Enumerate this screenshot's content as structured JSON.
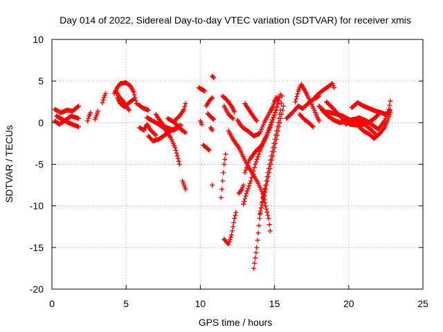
{
  "chart_data": {
    "type": "scatter",
    "marker": "plus",
    "color": "#ff0000",
    "title": "Day 014 of 2022, Sidereal Day-to-day VTEC variation (SDTVAR) for receiver xmis",
    "xlabel": "GPS time / hours",
    "ylabel": "SDTVAR / TECUs",
    "xlim": [
      0,
      25
    ],
    "ylim": [
      -20,
      10
    ],
    "xticks": [
      0,
      5,
      10,
      15,
      20,
      25
    ],
    "yticks": [
      -20,
      -15,
      -10,
      -5,
      0,
      5,
      10
    ],
    "grid": true,
    "tracks": [
      [
        [
          0.2,
          1.6
        ],
        [
          0.6,
          1.2
        ],
        [
          1.0,
          1.5
        ],
        [
          1.4,
          1.4
        ],
        [
          1.8,
          2.0
        ]
      ],
      [
        [
          0.2,
          0.2
        ],
        [
          0.5,
          -0.2
        ],
        [
          0.9,
          0.3
        ],
        [
          1.3,
          0.8
        ],
        [
          1.8,
          0.5
        ]
      ],
      [
        [
          0.3,
          0.8
        ],
        [
          0.7,
          0.4
        ],
        [
          1.1,
          0.0
        ],
        [
          1.5,
          -0.3
        ],
        [
          1.8,
          -0.5
        ]
      ],
      [
        [
          2.4,
          0.2
        ],
        [
          2.5,
          0.8
        ],
        [
          2.6,
          1.2
        ]
      ],
      [
        [
          2.9,
          0.4
        ],
        [
          3.0,
          0.9
        ],
        [
          3.1,
          1.4
        ]
      ],
      [
        [
          3.4,
          2.4
        ],
        [
          3.5,
          3.0
        ],
        [
          3.6,
          3.5
        ]
      ],
      [
        [
          4.2,
          3.5
        ],
        [
          4.4,
          4.2
        ],
        [
          4.6,
          4.7
        ],
        [
          5.0,
          4.8
        ],
        [
          5.3,
          4.4
        ],
        [
          5.5,
          3.7
        ],
        [
          5.6,
          3.0
        ],
        [
          5.7,
          2.3
        ]
      ],
      [
        [
          4.4,
          3.0
        ],
        [
          4.6,
          2.3
        ],
        [
          4.9,
          1.9
        ],
        [
          5.2,
          2.4
        ],
        [
          5.5,
          2.8
        ]
      ],
      [
        [
          4.3,
          3.8
        ],
        [
          4.5,
          3.2
        ],
        [
          4.8,
          2.6
        ],
        [
          5.0,
          2.0
        ],
        [
          5.2,
          1.5
        ]
      ],
      [
        [
          5.8,
          2.2
        ],
        [
          6.1,
          1.8
        ],
        [
          6.5,
          1.5
        ]
      ],
      [
        [
          5.9,
          -0.6
        ],
        [
          6.2,
          -0.9
        ],
        [
          6.4,
          -0.2
        ],
        [
          6.7,
          -1.0
        ],
        [
          7.0,
          -1.5
        ]
      ],
      [
        [
          6.4,
          0.6
        ],
        [
          6.8,
          0.2
        ],
        [
          7.2,
          -0.2
        ],
        [
          7.6,
          -0.7
        ],
        [
          8.0,
          -1.8
        ],
        [
          8.3,
          -3.0
        ],
        [
          8.5,
          -4.3
        ],
        [
          8.6,
          -5.0
        ]
      ],
      [
        [
          6.5,
          -1.6
        ],
        [
          6.8,
          -2.2
        ],
        [
          7.2,
          -2.0
        ],
        [
          7.6,
          -1.5
        ],
        [
          8.0,
          -1.0
        ],
        [
          8.4,
          -0.6
        ],
        [
          8.7,
          -0.3
        ]
      ],
      [
        [
          7.0,
          1.0
        ],
        [
          7.3,
          0.2
        ],
        [
          7.6,
          -0.5
        ],
        [
          7.9,
          -0.7
        ],
        [
          8.2,
          -0.9
        ],
        [
          8.5,
          -0.6
        ]
      ],
      [
        [
          7.8,
          0.5
        ],
        [
          8.1,
          0.2
        ],
        [
          8.4,
          -0.2
        ],
        [
          8.7,
          -0.8
        ],
        [
          9.0,
          -1.2
        ]
      ],
      [
        [
          8.3,
          0.3
        ],
        [
          8.6,
          0.8
        ],
        [
          8.9,
          1.6
        ],
        [
          9.0,
          2.3
        ]
      ],
      [
        [
          8.8,
          -7.0
        ],
        [
          8.9,
          -7.5
        ],
        [
          9.0,
          -8.0
        ]
      ],
      [
        [
          9.9,
          4.2
        ],
        [
          10.1,
          4.0
        ],
        [
          10.3,
          3.8
        ]
      ],
      [
        [
          10.0,
          0.2
        ],
        [
          10.1,
          -0.2
        ]
      ],
      [
        [
          10.4,
          2.0
        ],
        [
          10.6,
          2.6
        ],
        [
          10.8,
          3.0
        ]
      ],
      [
        [
          10.5,
          1.1
        ],
        [
          10.7,
          0.7
        ],
        [
          10.9,
          0.4
        ]
      ],
      [
        [
          10.2,
          -2.7
        ],
        [
          10.4,
          -3.0
        ],
        [
          10.6,
          -3.3
        ]
      ],
      [
        [
          10.8,
          5.6
        ],
        [
          10.9,
          5.4
        ]
      ],
      [
        [
          10.7,
          -0.6
        ],
        [
          10.8,
          -0.9
        ]
      ],
      [
        [
          10.8,
          -7.5
        ]
      ],
      [
        [
          11.4,
          -9.0
        ],
        [
          11.5,
          -7.0
        ],
        [
          11.6,
          -5.0
        ],
        [
          11.7,
          -3.8
        ]
      ],
      [
        [
          11.5,
          3.2
        ],
        [
          11.8,
          2.7
        ],
        [
          12.1,
          2.0
        ],
        [
          12.3,
          1.3
        ]
      ],
      [
        [
          11.6,
          2.0
        ],
        [
          11.9,
          1.0
        ],
        [
          12.2,
          0.5
        ]
      ],
      [
        [
          11.9,
          -1.0
        ],
        [
          12.2,
          -2.0
        ],
        [
          12.6,
          -3.0
        ],
        [
          13.0,
          -4.5
        ],
        [
          13.3,
          -5.5
        ],
        [
          13.6,
          -6.3
        ],
        [
          13.9,
          -7.3
        ],
        [
          14.2,
          -8.5
        ],
        [
          14.4,
          -10.0
        ],
        [
          14.6,
          -11.5
        ],
        [
          14.7,
          -13.0
        ]
      ],
      [
        [
          11.6,
          -14.0
        ],
        [
          11.9,
          -14.6
        ],
        [
          12.1,
          -13.5
        ],
        [
          12.3,
          -11.5
        ],
        [
          12.4,
          -10.8
        ]
      ],
      [
        [
          12.6,
          -8.5
        ],
        [
          12.8,
          -8.0
        ],
        [
          12.9,
          -7.5
        ]
      ],
      [
        [
          12.5,
          0.3
        ],
        [
          12.8,
          -0.5
        ],
        [
          13.2,
          -1.0
        ],
        [
          13.6,
          -1.6
        ],
        [
          14.0,
          -1.3
        ],
        [
          14.3,
          0.0
        ],
        [
          14.6,
          1.0
        ],
        [
          14.9,
          2.0
        ],
        [
          15.1,
          3.0
        ]
      ],
      [
        [
          12.9,
          -9.8
        ],
        [
          13.1,
          -8.5
        ],
        [
          13.4,
          -7.0
        ],
        [
          13.7,
          -5.0
        ],
        [
          14.0,
          -3.5
        ],
        [
          14.3,
          -2.2
        ],
        [
          14.7,
          -0.5
        ],
        [
          15.1,
          1.5
        ],
        [
          15.3,
          3.0
        ]
      ],
      [
        [
          13.0,
          -6.0
        ],
        [
          13.3,
          -4.5
        ],
        [
          13.7,
          -3.5
        ],
        [
          14.1,
          -2.8
        ],
        [
          14.5,
          -1.5
        ],
        [
          14.8,
          0.0
        ],
        [
          15.1,
          1.5
        ],
        [
          15.4,
          3.4
        ]
      ],
      [
        [
          13.6,
          -17.5
        ],
        [
          13.8,
          -15.0
        ],
        [
          14.0,
          -11.5
        ],
        [
          14.2,
          -9.0
        ],
        [
          14.4,
          -7.5
        ],
        [
          14.6,
          -5.5
        ],
        [
          14.9,
          -3.0
        ],
        [
          15.2,
          -0.5
        ],
        [
          15.4,
          1.5
        ],
        [
          15.5,
          3.2
        ]
      ],
      [
        [
          14.0,
          -11.0
        ],
        [
          14.2,
          -9.5
        ],
        [
          14.4,
          -8.0
        ],
        [
          14.7,
          -5.5
        ],
        [
          15.0,
          -3.0
        ],
        [
          15.3,
          -0.5
        ],
        [
          15.6,
          2.0
        ]
      ],
      [
        [
          13.0,
          2.3
        ],
        [
          13.4,
          1.2
        ],
        [
          13.8,
          0.2
        ]
      ],
      [
        [
          14.8,
          1.5
        ],
        [
          15.0,
          2.5
        ],
        [
          15.2,
          3.0
        ]
      ],
      [
        [
          15.8,
          0.5
        ],
        [
          16.2,
          1.2
        ],
        [
          16.6,
          2.0
        ]
      ],
      [
        [
          16.4,
          2.5
        ],
        [
          16.6,
          3.8
        ],
        [
          16.8,
          4.6
        ],
        [
          17.0,
          4.0
        ],
        [
          17.2,
          3.3
        ],
        [
          17.5,
          2.2
        ],
        [
          17.8,
          1.0
        ],
        [
          18.0,
          0.2
        ]
      ],
      [
        [
          16.6,
          2.0
        ],
        [
          16.9,
          1.7
        ],
        [
          17.2,
          2.2
        ],
        [
          17.6,
          2.8
        ],
        [
          18.0,
          3.2
        ]
      ],
      [
        [
          16.7,
          1.0
        ],
        [
          17.0,
          0.4
        ],
        [
          17.3,
          0.0
        ],
        [
          17.6,
          -0.5
        ]
      ],
      [
        [
          17.8,
          3.2
        ],
        [
          18.2,
          3.8
        ],
        [
          18.6,
          4.3
        ],
        [
          18.9,
          4.7
        ],
        [
          19.0,
          4.2
        ]
      ],
      [
        [
          18.0,
          2.0
        ],
        [
          18.4,
          1.3
        ],
        [
          18.8,
          1.2
        ],
        [
          19.2,
          1.0
        ],
        [
          19.6,
          0.8
        ],
        [
          20.0,
          0.4
        ],
        [
          20.4,
          0.1
        ]
      ],
      [
        [
          18.5,
          2.5
        ],
        [
          18.9,
          1.8
        ],
        [
          19.3,
          1.0
        ],
        [
          19.7,
          0.3
        ],
        [
          20.1,
          -0.2
        ],
        [
          20.5,
          -0.3
        ],
        [
          21.0,
          -0.2
        ],
        [
          21.4,
          0.1
        ],
        [
          21.8,
          0.6
        ],
        [
          22.0,
          1.0
        ]
      ],
      [
        [
          18.2,
          1.5
        ],
        [
          18.6,
          0.8
        ],
        [
          19.0,
          0.3
        ],
        [
          19.4,
          0.0
        ],
        [
          19.8,
          0.2
        ],
        [
          20.3,
          0.4
        ],
        [
          20.8,
          0.2
        ],
        [
          21.2,
          -0.4
        ],
        [
          21.6,
          -1.0
        ],
        [
          21.9,
          -1.6
        ]
      ],
      [
        [
          19.8,
          -0.2
        ],
        [
          20.2,
          0.3
        ],
        [
          20.7,
          0.6
        ],
        [
          21.2,
          0.2
        ],
        [
          21.6,
          -0.3
        ],
        [
          22.0,
          -0.8
        ],
        [
          22.4,
          0.2
        ],
        [
          22.7,
          1.6
        ],
        [
          22.8,
          2.6
        ]
      ],
      [
        [
          20.2,
          1.8
        ],
        [
          20.6,
          2.4
        ],
        [
          21.0,
          2.0
        ],
        [
          21.4,
          1.7
        ],
        [
          21.8,
          1.4
        ],
        [
          22.2,
          1.2
        ],
        [
          22.5,
          1.0
        ],
        [
          22.8,
          1.5
        ]
      ],
      [
        [
          20.7,
          -0.5
        ],
        [
          21.0,
          -1.0
        ],
        [
          21.4,
          -1.4
        ],
        [
          21.7,
          -1.9
        ],
        [
          22.1,
          -1.3
        ],
        [
          22.4,
          -0.6
        ],
        [
          22.6,
          0.2
        ],
        [
          22.8,
          1.2
        ]
      ]
    ]
  }
}
